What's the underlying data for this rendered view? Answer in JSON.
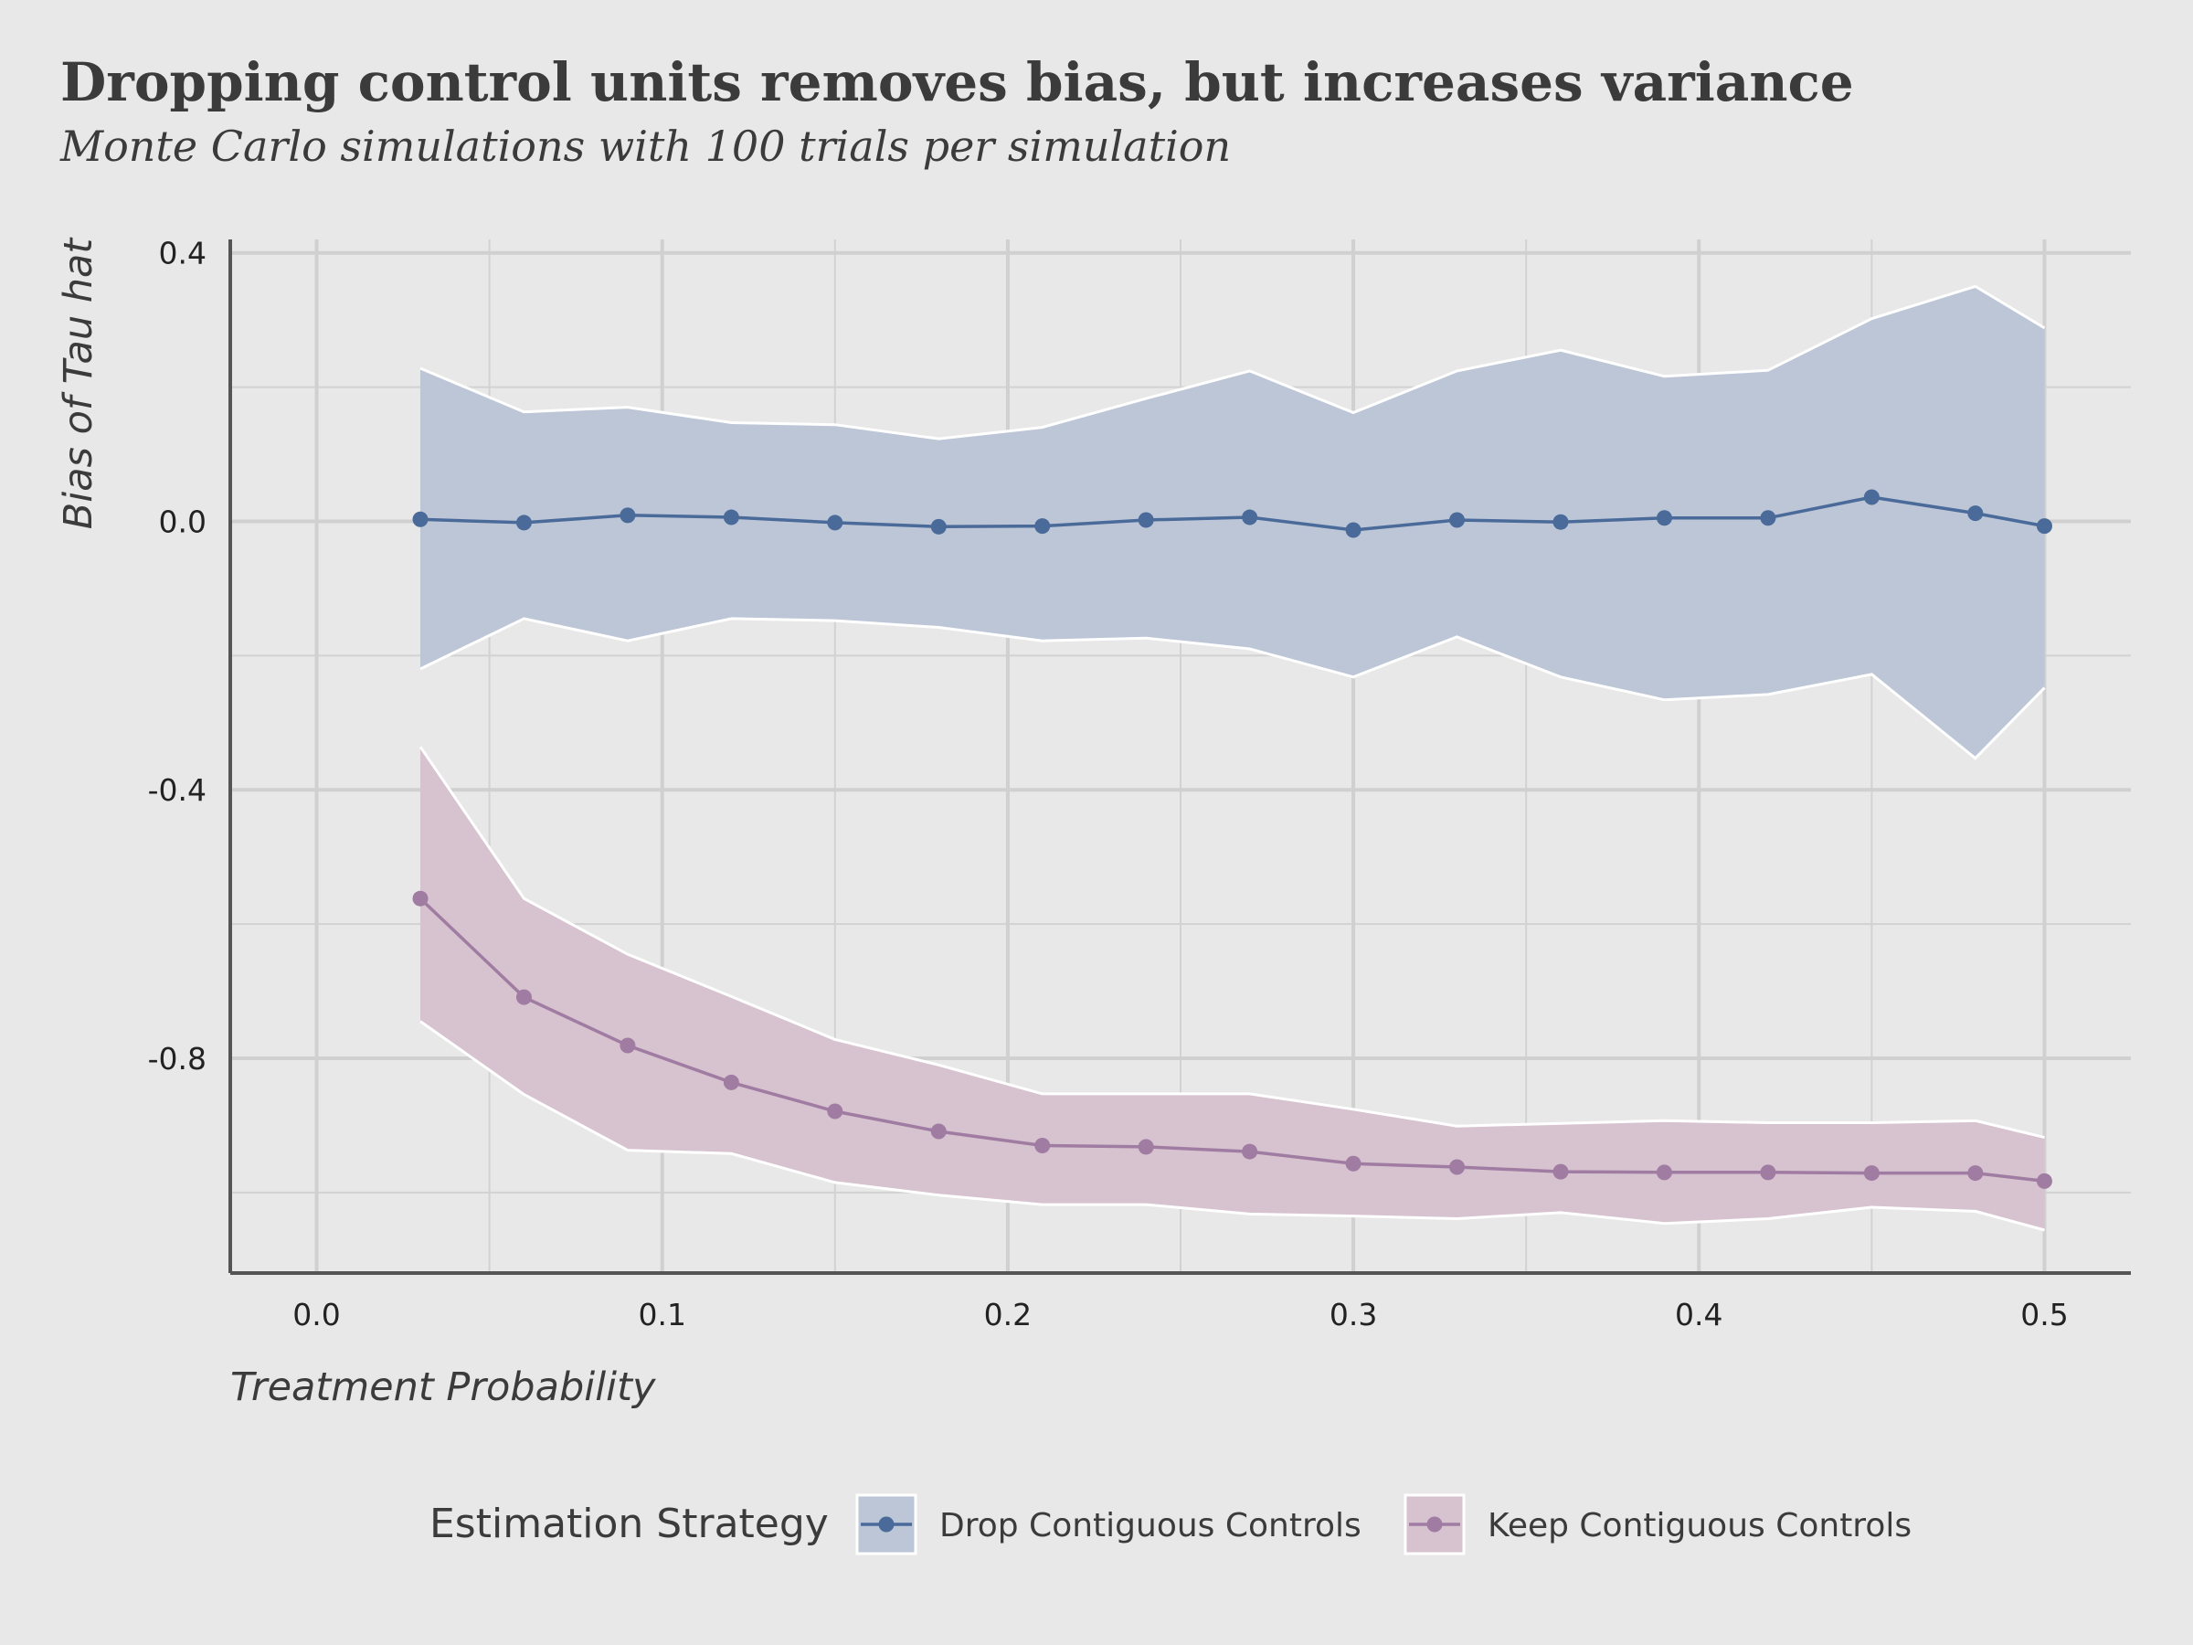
{
  "chart_data": {
    "type": "line",
    "title": "Dropping control units removes bias, but increases variance",
    "subtitle": "Monte Carlo simulations with 100 trials per simulation",
    "xlabel": "Treatment Probability",
    "ylabel": "Bias of Tau hat",
    "xlim": [
      -0.025,
      0.525
    ],
    "ylim": [
      -1.12,
      0.42
    ],
    "x_ticks": [
      0.0,
      0.1,
      0.2,
      0.3,
      0.4,
      0.5
    ],
    "x_tick_labels": [
      "0.0",
      "0.1",
      "0.2",
      "0.3",
      "0.4",
      "0.5"
    ],
    "y_ticks": [
      0.4,
      0.0,
      -0.4,
      -0.8
    ],
    "y_tick_labels": [
      "0.4",
      "0.0",
      "-0.4",
      "-0.8"
    ],
    "grid": true,
    "legend": {
      "title": "Estimation Strategy",
      "position": "bottom"
    },
    "x": [
      0.03,
      0.06,
      0.09,
      0.12,
      0.15,
      0.18,
      0.21,
      0.24,
      0.27,
      0.3,
      0.33,
      0.36,
      0.39,
      0.42,
      0.45,
      0.48,
      0.5
    ],
    "series": [
      {
        "name": "Drop Contiguous Controls",
        "color": "#4a6a9a",
        "ribbon_color": "#bcc6d6",
        "values": [
          0.003,
          -0.002,
          0.009,
          0.006,
          -0.002,
          -0.008,
          -0.007,
          0.002,
          0.006,
          -0.013,
          0.002,
          -0.001,
          0.005,
          0.005,
          0.036,
          0.012,
          -0.007
        ],
        "lower": [
          -0.22,
          -0.145,
          -0.178,
          -0.145,
          -0.148,
          -0.158,
          -0.178,
          -0.174,
          -0.19,
          -0.232,
          -0.172,
          -0.232,
          -0.266,
          -0.258,
          -0.228,
          -0.353,
          -0.248
        ],
        "upper": [
          0.228,
          0.163,
          0.17,
          0.147,
          0.144,
          0.123,
          0.14,
          0.183,
          0.224,
          0.162,
          0.224,
          0.255,
          0.216,
          0.225,
          0.302,
          0.35,
          0.288
        ]
      },
      {
        "name": "Keep Contiguous Controls",
        "color": "#a07ba2",
        "ribbon_color": "#d6c3cf",
        "values": [
          -0.562,
          -0.709,
          -0.781,
          -0.836,
          -0.879,
          -0.909,
          -0.93,
          -0.932,
          -0.939,
          -0.957,
          -0.962,
          -0.969,
          -0.97,
          -0.97,
          -0.971,
          -0.971,
          -0.983
        ],
        "lower": [
          -0.745,
          -0.854,
          -0.937,
          -0.942,
          -0.985,
          -1.004,
          -1.018,
          -1.018,
          -1.032,
          -1.035,
          -1.039,
          -1.03,
          -1.046,
          -1.039,
          -1.022,
          -1.028,
          -1.056
        ],
        "upper": [
          -0.336,
          -0.562,
          -0.645,
          -0.708,
          -0.772,
          -0.81,
          -0.853,
          -0.853,
          -0.853,
          -0.876,
          -0.901,
          -0.897,
          -0.893,
          -0.896,
          -0.896,
          -0.893,
          -0.918
        ]
      }
    ]
  }
}
